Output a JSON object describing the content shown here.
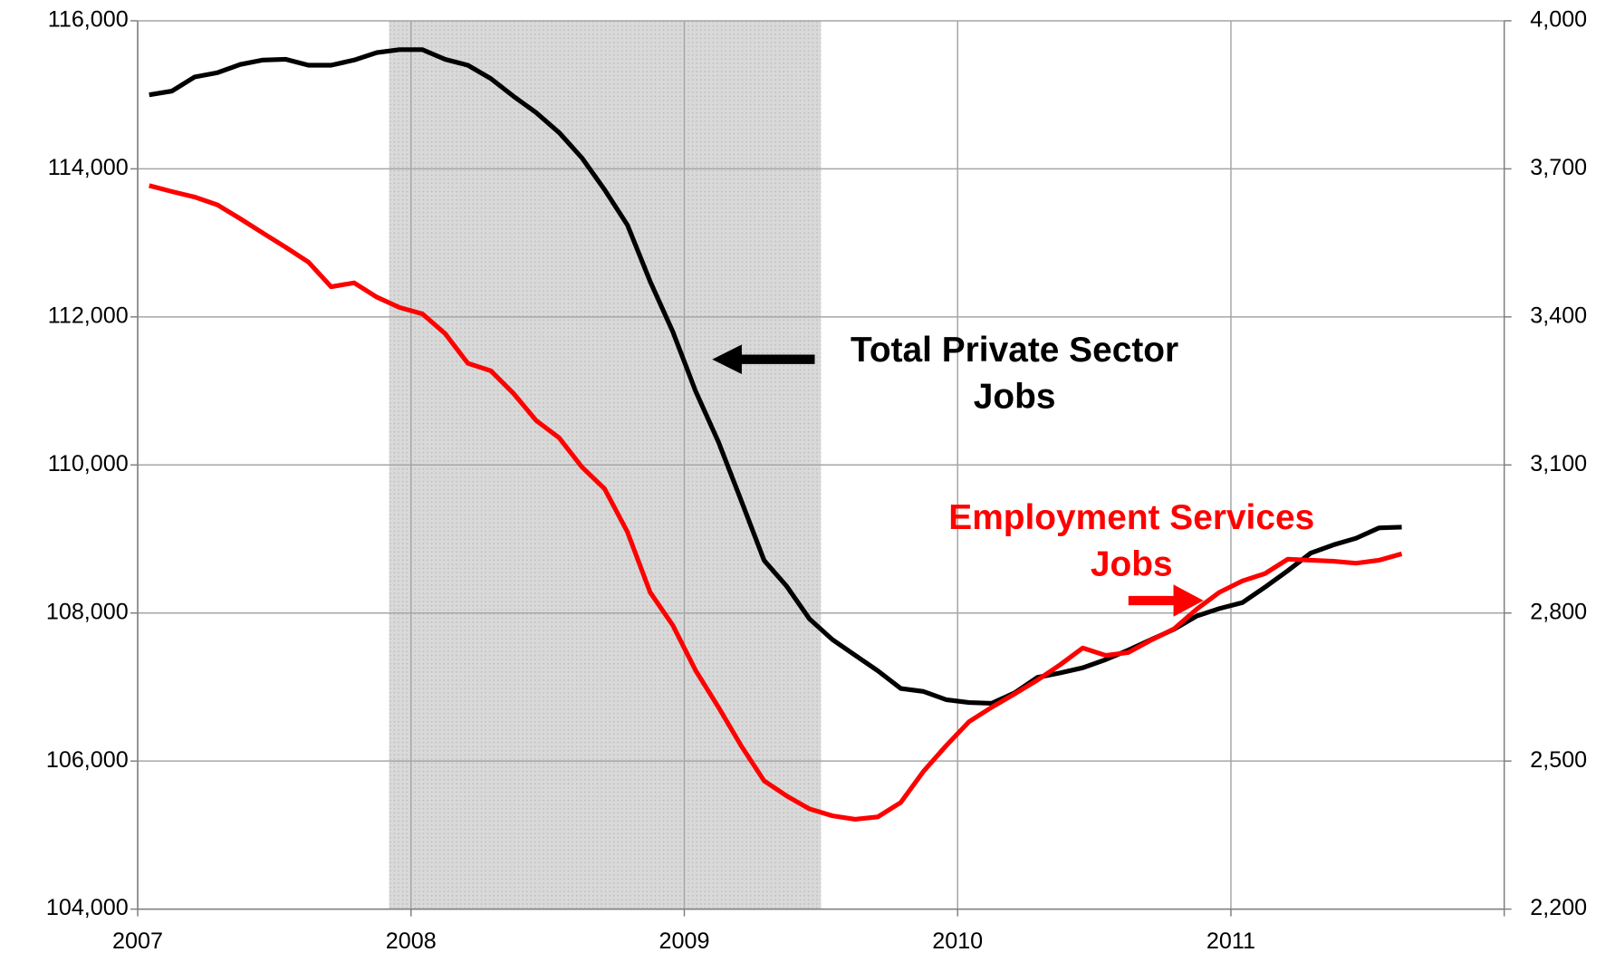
{
  "chart_data": {
    "type": "line",
    "x": [
      2007.042,
      2007.125,
      2007.208,
      2007.292,
      2007.375,
      2007.458,
      2007.542,
      2007.625,
      2007.708,
      2007.792,
      2007.875,
      2007.958,
      2008.042,
      2008.125,
      2008.208,
      2008.292,
      2008.375,
      2008.458,
      2008.542,
      2008.625,
      2008.708,
      2008.792,
      2008.875,
      2008.958,
      2009.042,
      2009.125,
      2009.208,
      2009.292,
      2009.375,
      2009.458,
      2009.542,
      2009.625,
      2009.708,
      2009.792,
      2009.875,
      2009.958,
      2010.042,
      2010.125,
      2010.208,
      2010.292,
      2010.375,
      2010.458,
      2010.542,
      2010.625,
      2010.708,
      2010.792,
      2010.875,
      2010.958,
      2011.042,
      2011.125,
      2011.208,
      2011.292,
      2011.375,
      2011.458,
      2011.542,
      2011.625
    ],
    "series": [
      {
        "label": [
          "Total Private Sector",
          "Jobs"
        ],
        "color": "#000000",
        "axis": "y",
        "values": [
          115000,
          115050,
          115240,
          115300,
          115410,
          115470,
          115480,
          115400,
          115400,
          115470,
          115570,
          115610,
          115610,
          115480,
          115400,
          115220,
          114980,
          114760,
          114490,
          114150,
          113720,
          113240,
          112480,
          111800,
          110990,
          110310,
          109520,
          108710,
          108360,
          107920,
          107640,
          107430,
          107220,
          106980,
          106940,
          106830,
          106790,
          106780,
          106920,
          107130,
          107190,
          107260,
          107370,
          107500,
          107640,
          107780,
          107960,
          108060,
          108140,
          108350,
          108570,
          108810,
          108920,
          109010,
          109150,
          109160
        ]
      },
      {
        "label": [
          "Employment Services",
          "Jobs"
        ],
        "color": "#ff0000",
        "axis": "y2",
        "values": [
          3666,
          3654,
          3643,
          3627,
          3599,
          3570,
          3541,
          3511,
          3461,
          3469,
          3440,
          3419,
          3406,
          3366,
          3306,
          3291,
          3245,
          3190,
          3155,
          3096,
          3052,
          2964,
          2842,
          2775,
          2683,
          2609,
          2531,
          2460,
          2429,
          2403,
          2389,
          2382,
          2387,
          2416,
          2479,
          2531,
          2580,
          2609,
          2636,
          2664,
          2695,
          2729,
          2714,
          2720,
          2745,
          2768,
          2808,
          2842,
          2865,
          2880,
          2909,
          2907,
          2905,
          2901,
          2907,
          2920
        ]
      }
    ],
    "shading": {
      "start": 2007.92,
      "end": 2009.5,
      "color": "#d9d9d9"
    },
    "xlim": [
      2007,
      2012
    ],
    "xticks": [
      2007,
      2008,
      2009,
      2010,
      2011
    ],
    "ylim": [
      104000,
      116000
    ],
    "yticks": [
      {
        "value": 104000,
        "label": "104,000"
      },
      {
        "value": 106000,
        "label": "106,000"
      },
      {
        "value": 108000,
        "label": "108,000"
      },
      {
        "value": 110000,
        "label": "110,000"
      },
      {
        "value": 112000,
        "label": "112,000"
      },
      {
        "value": 114000,
        "label": "114,000"
      },
      {
        "value": 116000,
        "label": "116,000"
      }
    ],
    "y2lim": [
      2200,
      4000
    ],
    "y2ticks": [
      {
        "value": 2200,
        "label": "2,200"
      },
      {
        "value": 2500,
        "label": "2,500"
      },
      {
        "value": 2800,
        "label": "2,800"
      },
      {
        "value": 3100,
        "label": "3,100"
      },
      {
        "value": 3400,
        "label": "3,400"
      },
      {
        "value": 3700,
        "label": "3,700"
      },
      {
        "value": 4000,
        "label": "4,000"
      }
    ],
    "grid": true
  }
}
